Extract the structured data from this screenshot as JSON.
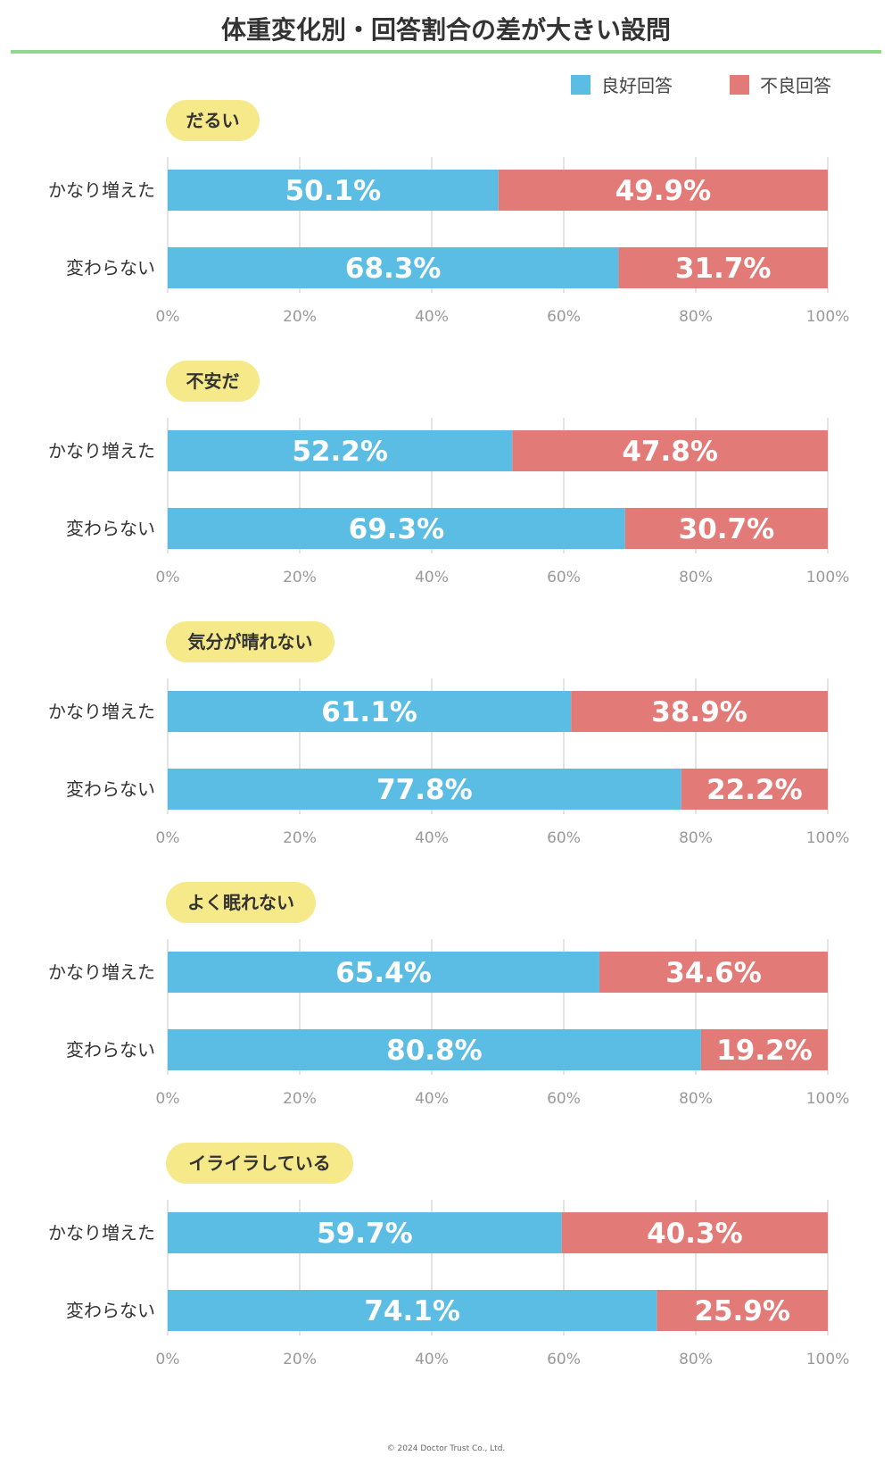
{
  "title": "体重変化別・回答割合の差が大きい設問",
  "legend": {
    "good": {
      "label": "良好回答",
      "color": "#5bbde3"
    },
    "bad": {
      "label": "不良回答",
      "color": "#e27b78"
    }
  },
  "pill_color": "#f6e98a",
  "footer": "© 2024 Doctor Trust Co., Ltd.",
  "chart_data": {
    "type": "bar",
    "stacked": true,
    "orientation": "horizontal",
    "xlim": [
      0,
      100
    ],
    "x_ticks": [
      "0%",
      "20%",
      "40%",
      "60%",
      "80%",
      "100%"
    ],
    "categories": [
      "かなり増えた",
      "変わらない"
    ],
    "series_names": [
      "良好回答",
      "不良回答"
    ],
    "panels": [
      {
        "title": "だるい",
        "rows": [
          {
            "label": "かなり増えた",
            "good": 50.1,
            "bad": 49.9,
            "good_text": "50.1%",
            "bad_text": "49.9%"
          },
          {
            "label": "変わらない",
            "good": 68.3,
            "bad": 31.7,
            "good_text": "68.3%",
            "bad_text": "31.7%"
          }
        ]
      },
      {
        "title": "不安だ",
        "rows": [
          {
            "label": "かなり増えた",
            "good": 52.2,
            "bad": 47.8,
            "good_text": "52.2%",
            "bad_text": "47.8%"
          },
          {
            "label": "変わらない",
            "good": 69.3,
            "bad": 30.7,
            "good_text": "69.3%",
            "bad_text": "30.7%"
          }
        ]
      },
      {
        "title": "気分が晴れない",
        "rows": [
          {
            "label": "かなり増えた",
            "good": 61.1,
            "bad": 38.9,
            "good_text": "61.1%",
            "bad_text": "38.9%"
          },
          {
            "label": "変わらない",
            "good": 77.8,
            "bad": 22.2,
            "good_text": "77.8%",
            "bad_text": "22.2%"
          }
        ]
      },
      {
        "title": "よく眠れない",
        "rows": [
          {
            "label": "かなり増えた",
            "good": 65.4,
            "bad": 34.6,
            "good_text": "65.4%",
            "bad_text": "34.6%"
          },
          {
            "label": "変わらない",
            "good": 80.8,
            "bad": 19.2,
            "good_text": "80.8%",
            "bad_text": "19.2%"
          }
        ]
      },
      {
        "title": "イライラしている",
        "rows": [
          {
            "label": "かなり増えた",
            "good": 59.7,
            "bad": 40.3,
            "good_text": "59.7%",
            "bad_text": "40.3%"
          },
          {
            "label": "変わらない",
            "good": 74.1,
            "bad": 25.9,
            "good_text": "74.1%",
            "bad_text": "25.9%"
          }
        ]
      }
    ]
  }
}
